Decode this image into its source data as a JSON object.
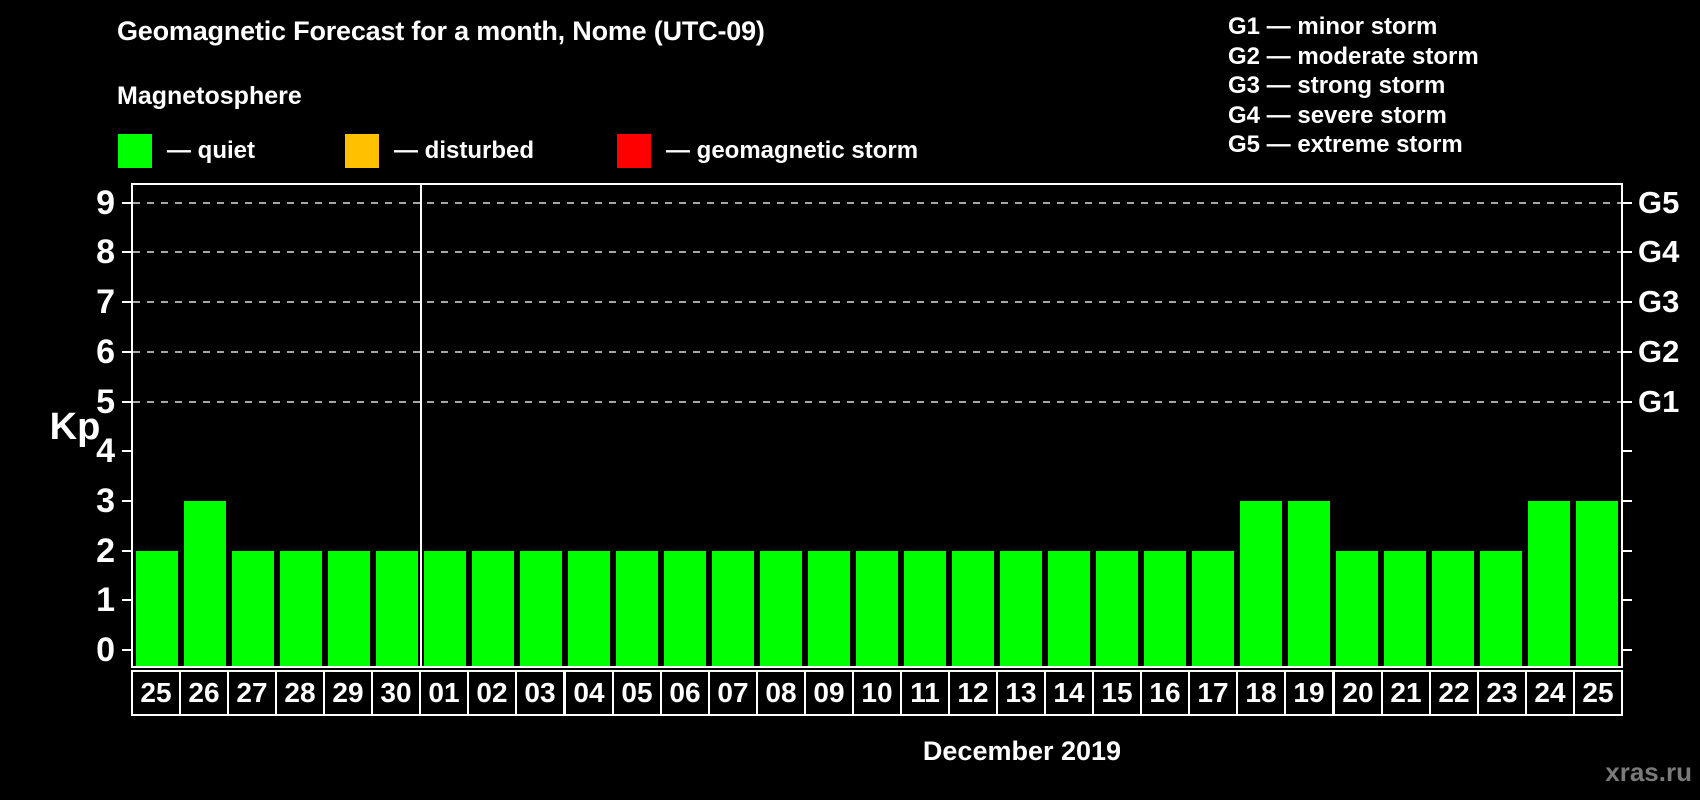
{
  "header": {
    "title": "Geomagnetic Forecast for a month, Nome (UTC-09)",
    "legend_heading": "Magnetosphere",
    "legend": {
      "items": [
        {
          "label": "— quiet",
          "color": "#00ff00"
        },
        {
          "label": "— disturbed",
          "color": "#ffc000"
        },
        {
          "label": "— geomagnetic storm",
          "color": "#ff0000"
        }
      ]
    }
  },
  "storm_scale": [
    "G1 — minor storm",
    "G2 — moderate storm",
    "G3 — strong storm",
    "G4 — severe storm",
    "G5 — extreme storm"
  ],
  "chart_data": {
    "type": "bar",
    "title": "Geomagnetic Forecast for a month, Nome (UTC-09)",
    "ylabel": "Kp",
    "xlabel": "December 2019",
    "ylim": [
      0,
      9
    ],
    "yticks": [
      0,
      1,
      2,
      3,
      4,
      5,
      6,
      7,
      8,
      9
    ],
    "gridlines_at_kp": [
      5,
      6,
      7,
      8,
      9
    ],
    "grid_on": true,
    "right_axis": [
      {
        "kp": 5,
        "label": "G1"
      },
      {
        "kp": 6,
        "label": "G2"
      },
      {
        "kp": 7,
        "label": "G3"
      },
      {
        "kp": 8,
        "label": "G4"
      },
      {
        "kp": 9,
        "label": "G5"
      }
    ],
    "categories": [
      "25",
      "26",
      "27",
      "28",
      "29",
      "30",
      "01",
      "02",
      "03",
      "04",
      "05",
      "06",
      "07",
      "08",
      "09",
      "10",
      "11",
      "12",
      "13",
      "14",
      "15",
      "16",
      "17",
      "18",
      "19",
      "20",
      "21",
      "22",
      "23",
      "24",
      "25"
    ],
    "values": [
      2,
      3,
      2,
      2,
      2,
      2,
      2,
      2,
      2,
      2,
      2,
      2,
      2,
      2,
      2,
      2,
      2,
      2,
      2,
      2,
      2,
      2,
      2,
      3,
      3,
      2,
      2,
      2,
      2,
      3,
      3
    ],
    "series_status": "all bars quiet (green)",
    "month_boundary_after_index": 5,
    "bar_color": "#00ff00",
    "grid_color": "#a6a6a6"
  },
  "footer": {
    "month_label": "December 2019",
    "watermark": "xras.ru"
  },
  "colors": {
    "background": "#000000",
    "text": "#ffffff",
    "quiet": "#00ff00",
    "disturbed": "#ffc000",
    "storm": "#ff0000"
  }
}
